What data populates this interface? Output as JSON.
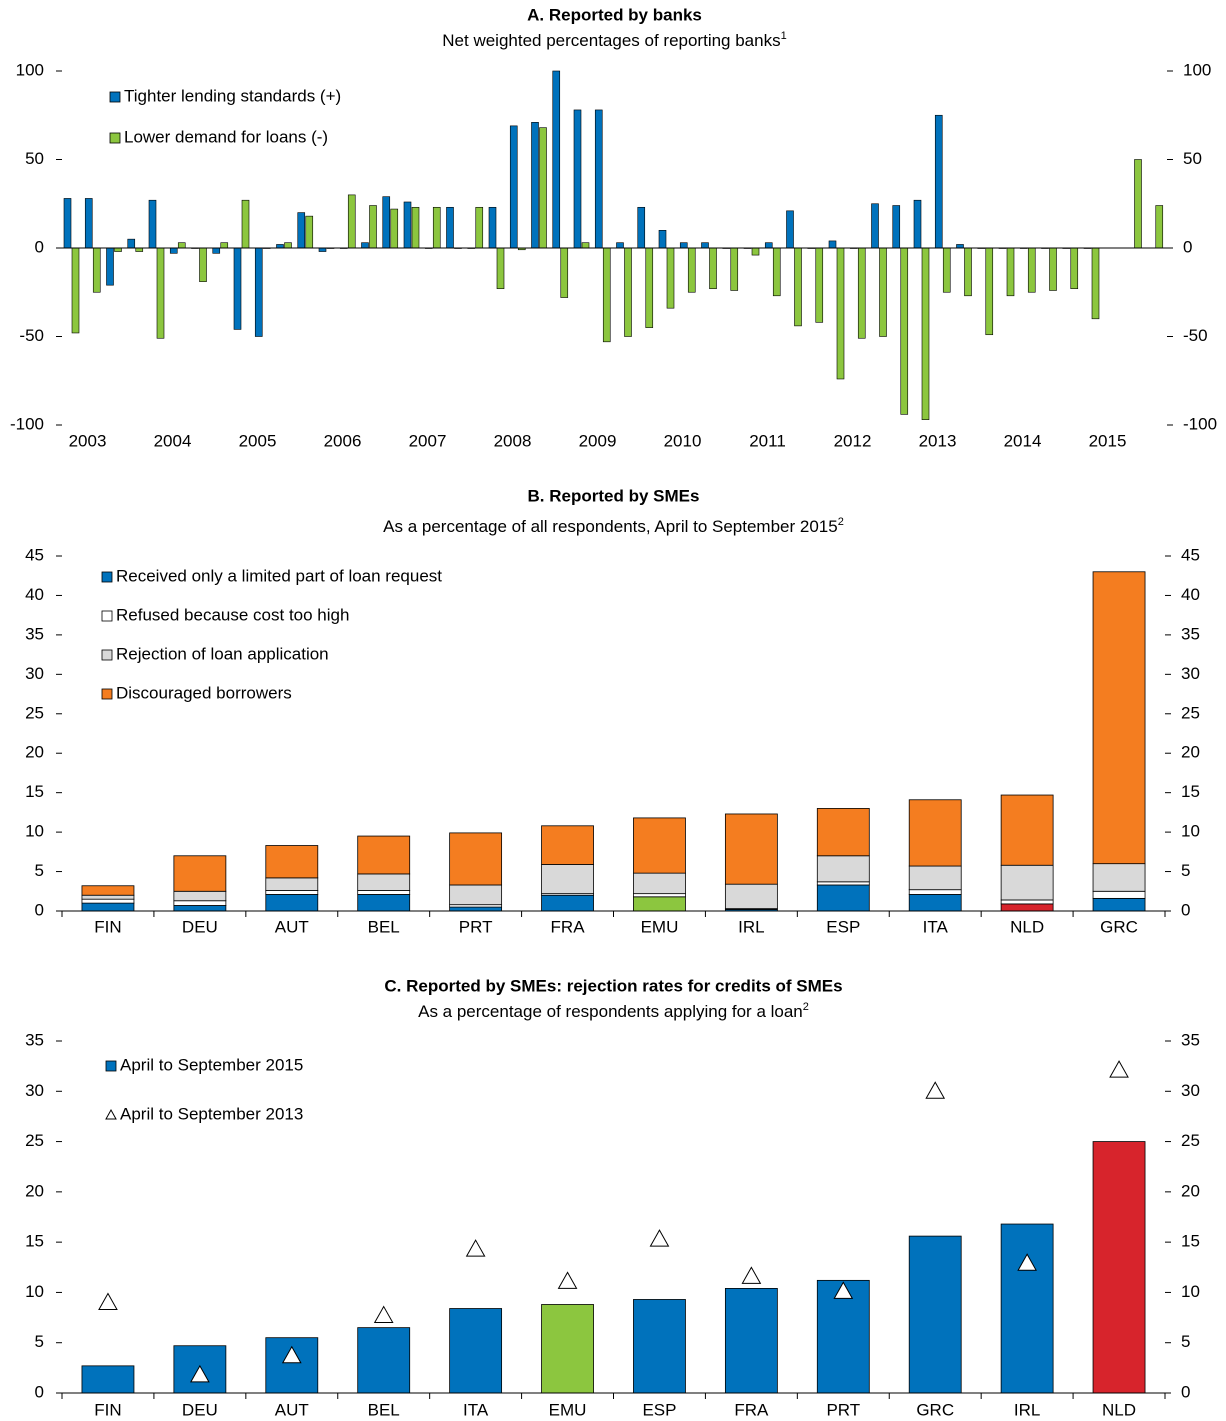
{
  "chart_data": [
    {
      "type": "bar",
      "title": "A. Reported by banks",
      "subtitle": "Net weighted percentages of reporting banks",
      "subtitle_note": "1",
      "categories": [
        "2003",
        null,
        null,
        null,
        "2004",
        null,
        null,
        null,
        "2005",
        null,
        null,
        null,
        "2006",
        null,
        null,
        null,
        "2007",
        null,
        null,
        null,
        "2008",
        null,
        null,
        null,
        "2009",
        null,
        null,
        null,
        "2010",
        null,
        null,
        null,
        "2011",
        null,
        null,
        null,
        "2012",
        null,
        null,
        null,
        "2013",
        null,
        null,
        null,
        "2014",
        null,
        null,
        null,
        "2015",
        null,
        null,
        null
      ],
      "series": [
        {
          "name": "Tighter lending standards (+)",
          "color": "#0072bc",
          "values": [
            28,
            28,
            -21,
            5,
            27,
            -3,
            0,
            -3,
            -46,
            -50,
            2,
            20,
            -2,
            0,
            3,
            29,
            26,
            0,
            23,
            0,
            23,
            69,
            71,
            100,
            78,
            78,
            3,
            23,
            10,
            3,
            3,
            0,
            0,
            3,
            21,
            0,
            4,
            0,
            25,
            24,
            27,
            75,
            2,
            0,
            0,
            0,
            0,
            0,
            0,
            null,
            null,
            null
          ]
        },
        {
          "name": "Lower demand for loans (-)",
          "color": "#8cc63f",
          "values": [
            -48,
            -25,
            -2,
            -2,
            -51,
            3,
            -19,
            3,
            27,
            0,
            3,
            18,
            0,
            30,
            24,
            22,
            23,
            23,
            0,
            23,
            -23,
            -1,
            68,
            -28,
            3,
            -53,
            -50,
            -45,
            -34,
            -25,
            -23,
            -24,
            -4,
            -27,
            -44,
            -42,
            -74,
            -51,
            -50,
            -94,
            -97,
            -25,
            -27,
            -49,
            -27,
            -25,
            -24,
            -23,
            -40,
            null,
            50,
            24
          ]
        }
      ],
      "ylim": [
        -100,
        100
      ],
      "yticks": [
        -100,
        -50,
        0,
        50,
        100
      ],
      "y2lim": [
        -100,
        100
      ],
      "y2ticks": [
        -100,
        -50,
        0,
        50,
        100
      ]
    },
    {
      "type": "stacked_bar",
      "title": "B. Reported by SMEs",
      "subtitle": "As a percentage of all respondents, April to September 2015",
      "subtitle_note": "2",
      "categories": [
        "FIN",
        "DEU",
        "AUT",
        "BEL",
        "PRT",
        "FRA",
        "EMU",
        "IRL",
        "ESP",
        "ITA",
        "NLD",
        "GRC"
      ],
      "series": [
        {
          "name": "Received only a limited part of loan request",
          "color": "#0072bc",
          "colors": [
            "#0072bc",
            "#0072bc",
            "#0072bc",
            "#0072bc",
            "#0072bc",
            "#0072bc",
            "#8cc63f",
            "#0072bc",
            "#0072bc",
            "#0072bc",
            "#d7242c",
            "#0072bc"
          ],
          "values": [
            1.0,
            0.7,
            2.1,
            2.1,
            0.5,
            2.0,
            1.8,
            0.2,
            3.3,
            2.1,
            0.9,
            1.6
          ]
        },
        {
          "name": "Refused because cost too high",
          "color": "#ffffff",
          "values": [
            0.5,
            0.6,
            0.5,
            0.5,
            0.3,
            0.2,
            0.4,
            0.1,
            0.4,
            0.6,
            0.5,
            0.9
          ]
        },
        {
          "name": "Rejection of loan application",
          "color": "#d9d9d9",
          "values": [
            0.5,
            1.2,
            1.6,
            2.1,
            2.5,
            3.7,
            2.6,
            3.1,
            3.3,
            3.0,
            4.4,
            3.5
          ]
        },
        {
          "name": "Discouraged borrowers",
          "color": "#f47d20",
          "values": [
            1.2,
            4.5,
            4.1,
            4.8,
            6.6,
            4.9,
            7.0,
            8.9,
            6.0,
            8.4,
            8.9,
            37.0
          ]
        }
      ],
      "ylim": [
        0,
        45
      ],
      "yticks": [
        0,
        5,
        10,
        15,
        20,
        25,
        30,
        35,
        40,
        45
      ],
      "y2lim": [
        0,
        45
      ],
      "y2ticks": [
        0,
        5,
        10,
        15,
        20,
        25,
        30,
        35,
        40,
        45
      ]
    },
    {
      "type": "bar_marker",
      "title": "C. Reported by SMEs: rejection rates for credits of SMEs",
      "subtitle": "As a percentage of respondents applying for a loan",
      "subtitle_note": "2",
      "categories": [
        "FIN",
        "DEU",
        "AUT",
        "BEL",
        "ITA",
        "EMU",
        "ESP",
        "FRA",
        "PRT",
        "GRC",
        "IRL",
        "NLD"
      ],
      "series": [
        {
          "name": "April to September 2015",
          "mark": "bar",
          "color": "#0072bc",
          "colors": [
            "#0072bc",
            "#0072bc",
            "#0072bc",
            "#0072bc",
            "#0072bc",
            "#8cc63f",
            "#0072bc",
            "#0072bc",
            "#0072bc",
            "#0072bc",
            "#0072bc",
            "#d7242c"
          ],
          "values": [
            2.7,
            4.7,
            5.5,
            6.5,
            8.4,
            8.8,
            9.3,
            10.4,
            11.2,
            15.6,
            16.8,
            25.0
          ]
        },
        {
          "name": "April to September 2013",
          "mark": "triangle",
          "color": "#ffffff",
          "values": [
            9.0,
            1.8,
            3.7,
            7.7,
            14.3,
            11.1,
            15.3,
            11.6,
            10.1,
            30.0,
            12.9,
            32.1
          ]
        }
      ],
      "ylim": [
        0,
        35
      ],
      "yticks": [
        0,
        5,
        10,
        15,
        20,
        25,
        30,
        35
      ],
      "y2lim": [
        0,
        35
      ],
      "y2ticks": [
        0,
        5,
        10,
        15,
        20,
        25,
        30,
        35
      ]
    }
  ]
}
